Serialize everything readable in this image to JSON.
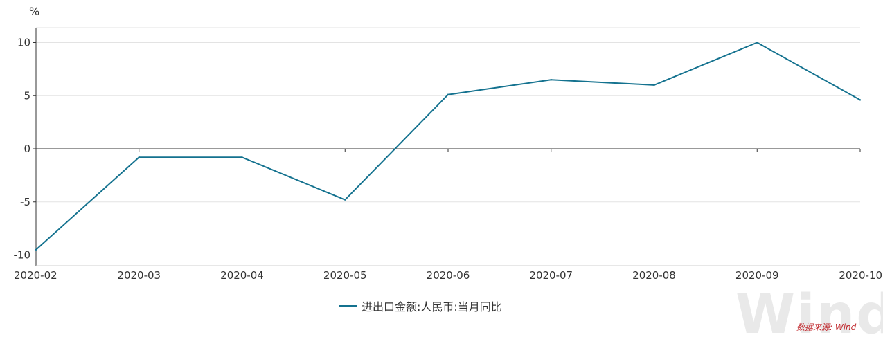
{
  "chart_data": {
    "type": "line",
    "unit": "%",
    "categories": [
      "2020-02",
      "2020-03",
      "2020-04",
      "2020-05",
      "2020-06",
      "2020-07",
      "2020-08",
      "2020-09",
      "2020-10"
    ],
    "series": [
      {
        "name": "进出口金额:人民币:当月同比",
        "values": [
          -9.5,
          -0.8,
          -0.8,
          -4.8,
          5.1,
          6.5,
          6.0,
          10.0,
          4.6
        ],
        "color": "#14728f"
      }
    ],
    "yticks": [
      10,
      5,
      0,
      -5,
      -10
    ],
    "ylim": [
      -11,
      11.5
    ],
    "grid": true,
    "legend_position": "bottom"
  },
  "watermark": "Wind",
  "source_note": "数据来源: Wind"
}
